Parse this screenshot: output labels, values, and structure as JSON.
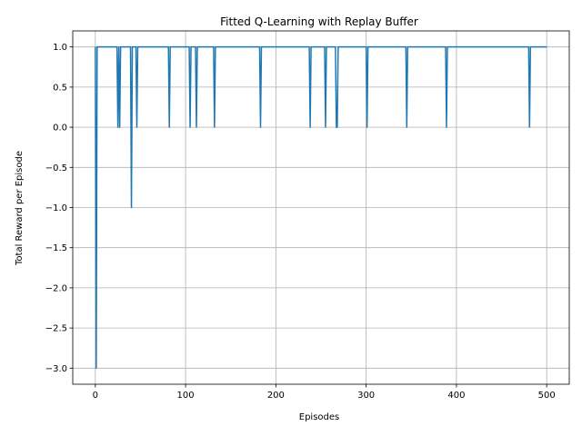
{
  "chart_data": {
    "type": "line",
    "title": "Fitted Q-Learning with Replay Buffer",
    "xlabel": "Episodes",
    "ylabel": "Total Reward per Episode",
    "xlim": [
      -25,
      525
    ],
    "ylim": [
      -3.2,
      1.2
    ],
    "xticks": [
      0,
      100,
      200,
      300,
      400,
      500
    ],
    "yticks": [
      -3.0,
      -2.5,
      -2.0,
      -1.5,
      -1.0,
      -0.5,
      0.0,
      0.5,
      1.0
    ],
    "ytick_labels": [
      "−3.0",
      "−2.5",
      "−2.0",
      "−1.5",
      "−1.0",
      "−0.5",
      "0.0",
      "0.5",
      "1.0"
    ],
    "grid": true,
    "line_color": "#1f77b4",
    "series": [
      {
        "episodes": 501,
        "default_value": 1,
        "dips": [
          {
            "x": 1,
            "y": -3
          },
          {
            "x": 25,
            "y": 0
          },
          {
            "x": 27,
            "y": 0
          },
          {
            "x": 40,
            "y": -1
          },
          {
            "x": 46,
            "y": 0
          },
          {
            "x": 82,
            "y": 0
          },
          {
            "x": 105,
            "y": 0
          },
          {
            "x": 112,
            "y": 0
          },
          {
            "x": 132,
            "y": 0
          },
          {
            "x": 183,
            "y": 0
          },
          {
            "x": 238,
            "y": 0
          },
          {
            "x": 255,
            "y": 0
          },
          {
            "x": 267,
            "y": 0
          },
          {
            "x": 268,
            "y": 0
          },
          {
            "x": 301,
            "y": 0
          },
          {
            "x": 345,
            "y": 0
          },
          {
            "x": 389,
            "y": 0
          },
          {
            "x": 481,
            "y": 0
          }
        ]
      }
    ]
  }
}
